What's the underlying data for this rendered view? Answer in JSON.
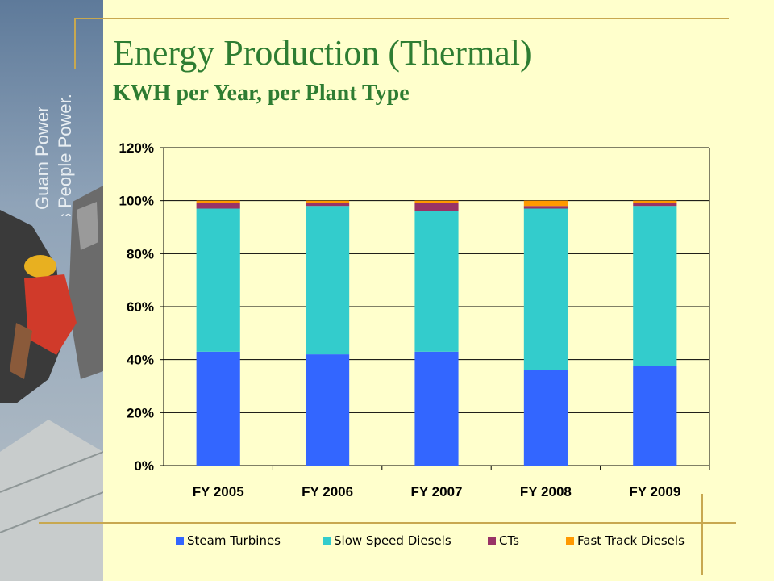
{
  "brand": {
    "line1": "Guam Power",
    "line2": "is People Power."
  },
  "slide": {
    "title": "Energy Production (Thermal)",
    "subtitle": "KWH per Year, per Plant Type"
  },
  "colors": {
    "background": "#FFFFCC",
    "title": "#2E7D32",
    "rule": "#C8A850"
  },
  "chart_data": {
    "type": "bar",
    "stacked": true,
    "categories": [
      "FY 2005",
      "FY 2006",
      "FY 2007",
      "FY 2008",
      "FY 2009"
    ],
    "series": [
      {
        "name": "Steam Turbines",
        "color": "#3366FF",
        "values": [
          43,
          42,
          43,
          36,
          37.5
        ]
      },
      {
        "name": "Slow Speed Diesels",
        "color": "#33CCCC",
        "values": [
          54,
          56,
          53,
          61,
          60.5
        ]
      },
      {
        "name": "CTs",
        "color": "#993366",
        "values": [
          2,
          1,
          3,
          1,
          1
        ]
      },
      {
        "name": "Fast Track Diesels",
        "color": "#FF9900",
        "values": [
          1,
          1,
          1,
          2,
          1
        ]
      }
    ],
    "ylim": [
      0,
      120
    ],
    "yticks": [
      "0%",
      "20%",
      "40%",
      "60%",
      "80%",
      "100%",
      "120%"
    ],
    "grid": true,
    "legend_position": "bottom"
  }
}
